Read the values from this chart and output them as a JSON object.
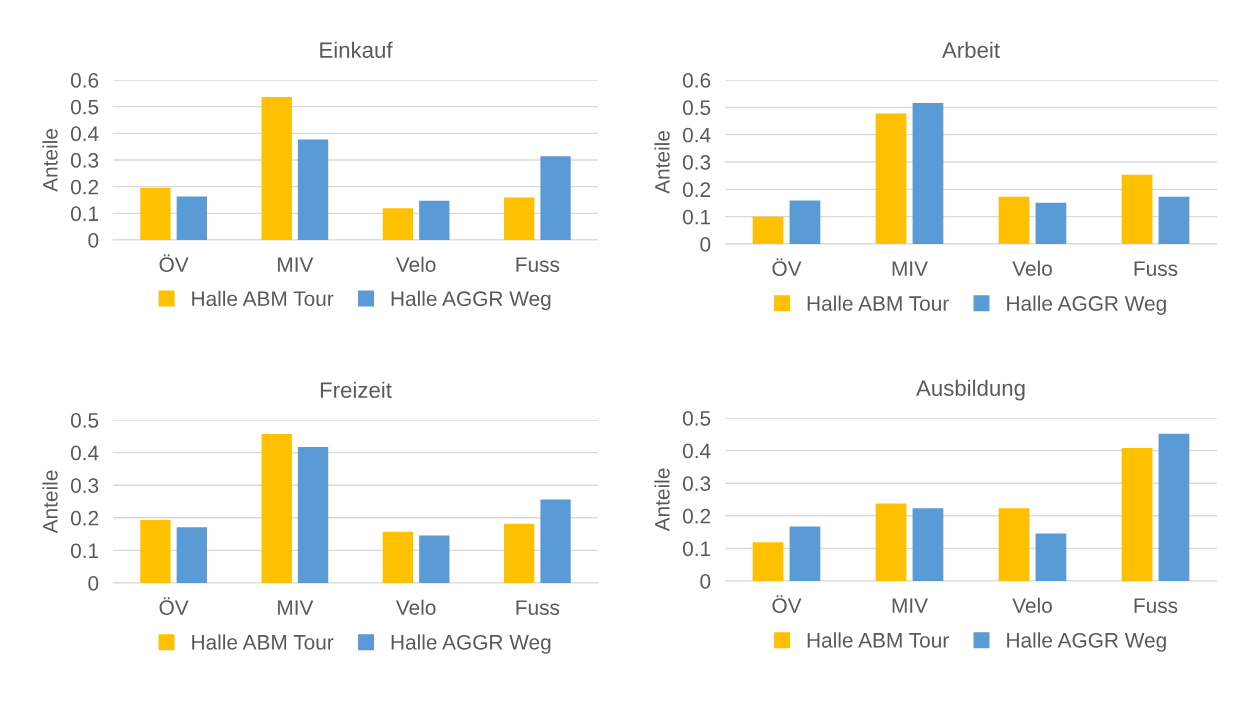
{
  "chart_data": [
    {
      "type": "bar",
      "title": "Einkauf",
      "ylabel": "Anteile",
      "categories": [
        "ÖV",
        "MIV",
        "Velo",
        "Fuss"
      ],
      "ylim": [
        0,
        0.6
      ],
      "yticks": [
        0,
        0.1,
        0.2,
        0.3,
        0.4,
        0.5,
        0.6
      ],
      "grid": "y",
      "legend": "bottom",
      "series": [
        {
          "name": "Halle ABM Tour",
          "color": "#ffc000",
          "values": [
            0.196,
            0.536,
            0.119,
            0.159
          ]
        },
        {
          "name": "Halle AGGR Weg",
          "color": "#5b9bd5",
          "values": [
            0.163,
            0.377,
            0.147,
            0.314
          ]
        }
      ]
    },
    {
      "type": "bar",
      "title": "Arbeit",
      "ylabel": "Anteile",
      "categories": [
        "ÖV",
        "MIV",
        "Velo",
        "Fuss"
      ],
      "ylim": [
        0,
        0.6
      ],
      "yticks": [
        0,
        0.1,
        0.2,
        0.3,
        0.4,
        0.5,
        0.6
      ],
      "grid": "y",
      "legend": "bottom",
      "series": [
        {
          "name": "Halle ABM Tour",
          "color": "#ffc000",
          "values": [
            0.1,
            0.477,
            0.173,
            0.253
          ]
        },
        {
          "name": "Halle AGGR Weg",
          "color": "#5b9bd5",
          "values": [
            0.159,
            0.516,
            0.151,
            0.173
          ]
        }
      ]
    },
    {
      "type": "bar",
      "title": "Freizeit",
      "ylabel": "Anteile",
      "categories": [
        "ÖV",
        "MIV",
        "Velo",
        "Fuss"
      ],
      "ylim": [
        0,
        0.5
      ],
      "yticks": [
        0,
        0.1,
        0.2,
        0.3,
        0.4,
        0.5
      ],
      "grid": "y",
      "legend": "bottom",
      "series": [
        {
          "name": "Halle ABM Tour",
          "color": "#ffc000",
          "values": [
            0.193,
            0.457,
            0.157,
            0.182
          ]
        },
        {
          "name": "Halle AGGR Weg",
          "color": "#5b9bd5",
          "values": [
            0.171,
            0.417,
            0.146,
            0.256
          ]
        }
      ]
    },
    {
      "type": "bar",
      "title": "Ausbildung",
      "ylabel": "Anteile",
      "categories": [
        "ÖV",
        "MIV",
        "Velo",
        "Fuss"
      ],
      "ylim": [
        0,
        0.5
      ],
      "yticks": [
        0,
        0.1,
        0.2,
        0.3,
        0.4,
        0.5
      ],
      "grid": "y",
      "legend": "bottom",
      "series": [
        {
          "name": "Halle ABM Tour",
          "color": "#ffc000",
          "values": [
            0.119,
            0.238,
            0.223,
            0.408
          ]
        },
        {
          "name": "Halle AGGR Weg",
          "color": "#5b9bd5",
          "values": [
            0.167,
            0.223,
            0.146,
            0.452
          ]
        }
      ]
    }
  ]
}
